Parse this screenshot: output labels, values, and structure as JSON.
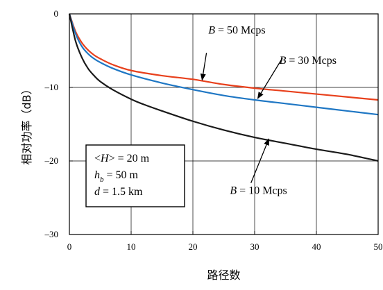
{
  "chart_data": {
    "type": "line",
    "xlabel": "路径数",
    "ylabel": "相对功率（dB）",
    "xlim": [
      0,
      50
    ],
    "ylim": [
      -30,
      0
    ],
    "xticks": [
      0,
      10,
      20,
      30,
      40,
      50
    ],
    "yticks": [
      0,
      -10,
      -20,
      -30
    ],
    "xtick_labels": [
      "0",
      "10",
      "20",
      "30",
      "40",
      "50"
    ],
    "ytick_labels": [
      "0",
      "–10",
      "–20",
      "–30"
    ],
    "grid": true,
    "series": [
      {
        "name": "B = 50 Mcps",
        "color": "#e8401c",
        "x": [
          0,
          1,
          2,
          3,
          4,
          5,
          7,
          10,
          15,
          20,
          25,
          30,
          35,
          40,
          45,
          50
        ],
        "y": [
          0,
          -2.4,
          -3.9,
          -4.9,
          -5.6,
          -6.1,
          -6.9,
          -7.7,
          -8.4,
          -8.9,
          -9.6,
          -10.1,
          -10.5,
          -10.9,
          -11.3,
          -11.7
        ]
      },
      {
        "name": "B = 30 Mcps",
        "color": "#1f77c4",
        "x": [
          0,
          1,
          2,
          3,
          4,
          5,
          7,
          10,
          15,
          20,
          25,
          30,
          35,
          40,
          45,
          50
        ],
        "y": [
          0,
          -2.7,
          -4.4,
          -5.4,
          -6.1,
          -6.6,
          -7.4,
          -8.3,
          -9.4,
          -10.3,
          -11.1,
          -11.7,
          -12.2,
          -12.7,
          -13.2,
          -13.7
        ]
      },
      {
        "name": "B = 10 Mcps",
        "color": "#1a1a1a",
        "x": [
          0,
          1,
          2,
          3,
          4,
          5,
          7,
          10,
          12,
          15,
          20,
          25,
          30,
          35,
          40,
          45,
          50
        ],
        "y": [
          0,
          -3.7,
          -5.9,
          -7.4,
          -8.4,
          -9.2,
          -10.3,
          -11.6,
          -12.3,
          -13.2,
          -14.6,
          -15.8,
          -16.8,
          -17.6,
          -18.4,
          -19.1,
          -20.0
        ]
      }
    ],
    "annotations": [
      {
        "label_var": "B",
        "label_text": " = 50 Mcps",
        "text_x": 22.5,
        "text_y": -2.7,
        "arrow_from": [
          22.2,
          -5.3
        ],
        "arrow_to": [
          21.5,
          -9.0
        ]
      },
      {
        "label_var": "B",
        "label_text": " = 30 Mcps",
        "text_x": 34.0,
        "text_y": -6.8,
        "arrow_from": [
          34.5,
          -6.0
        ],
        "arrow_to": [
          30.5,
          -11.5
        ]
      },
      {
        "label_var": "B",
        "label_text": " = 10 Mcps",
        "text_x": 26.0,
        "text_y": -24.5,
        "arrow_from": [
          29.4,
          -23.0
        ],
        "arrow_to": [
          32.3,
          -17.0
        ]
      }
    ],
    "legend_box": {
      "lines": [
        {
          "pre": "<",
          "var": "H",
          "sub": "",
          "post": "> = 20 m"
        },
        {
          "pre": "",
          "var": "h",
          "sub": "b",
          "post": " = 50 m"
        },
        {
          "pre": "",
          "var": "d",
          "sub": "",
          "post": " = 1.5 km"
        }
      ]
    }
  }
}
